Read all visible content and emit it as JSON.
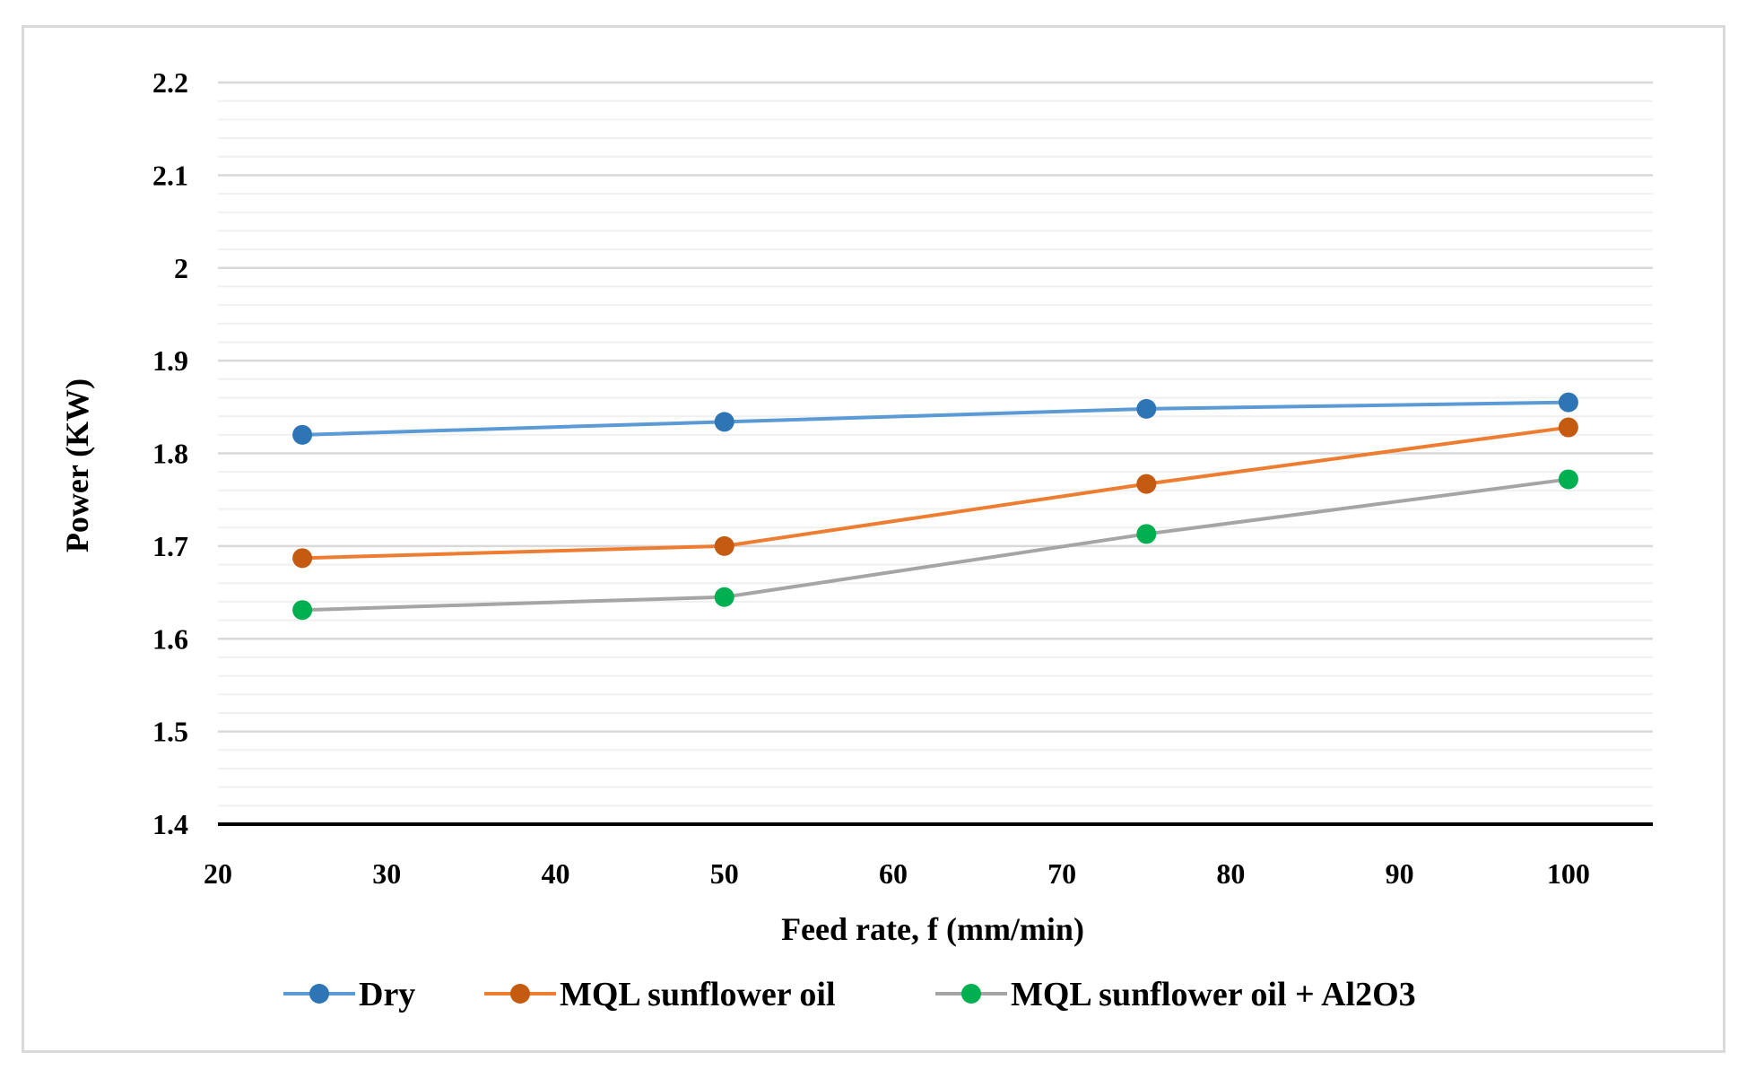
{
  "chart_data": {
    "type": "line",
    "title": "",
    "xlabel": "Feed rate, f (mm/min)",
    "ylabel": "Power (KW)",
    "xlim": [
      20,
      105
    ],
    "ylim": [
      1.4,
      2.2
    ],
    "x_ticks": [
      20,
      30,
      40,
      50,
      60,
      70,
      80,
      90,
      100
    ],
    "x_tick_labels": [
      "20",
      "30",
      "40",
      "50",
      "60",
      "70",
      "80",
      "90",
      "100"
    ],
    "y_ticks": [
      1.4,
      1.5,
      1.6,
      1.7,
      1.8,
      1.9,
      2.0,
      2.1,
      2.2
    ],
    "y_tick_labels": [
      "1.4",
      "1.5",
      "1.6",
      "1.7",
      "1.8",
      "1.9",
      "2",
      "2.1",
      "2.2"
    ],
    "minor_grid_step": 0.02,
    "grid": true,
    "legend_position": "bottom",
    "x": [
      25,
      50,
      75,
      100
    ],
    "series": [
      {
        "name": "Dry",
        "values": [
          1.82,
          1.834,
          1.848,
          1.855
        ],
        "line_color": "#5b9bd5",
        "marker_color": "#2e75b6"
      },
      {
        "name": "MQL sunflower oil",
        "values": [
          1.687,
          1.7,
          1.767,
          1.828
        ],
        "line_color": "#ed7d31",
        "marker_color": "#c55a11"
      },
      {
        "name": "MQL sunflower oil + Al2O3",
        "values": [
          1.631,
          1.645,
          1.713,
          1.772
        ],
        "line_color": "#a5a5a5",
        "marker_color": "#00b050"
      }
    ]
  }
}
